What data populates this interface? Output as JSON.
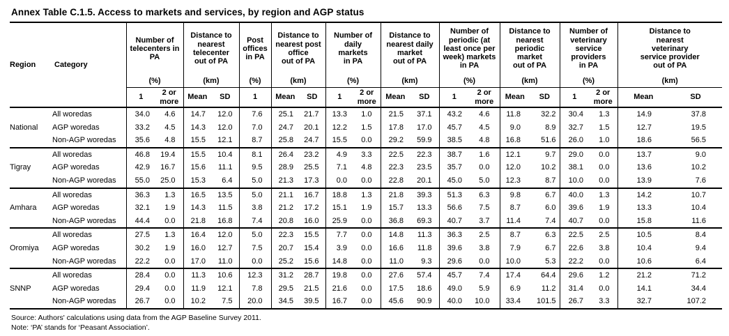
{
  "page": {
    "title": "Annex Table C.1.5. Access to markets and services, by region and AGP status",
    "source": "Source: Authors' calculations using data from the AGP Baseline Survey 2011.",
    "note": "Note: ‘PA’ stands for ‘Peasant Association’."
  },
  "table": {
    "corner": {
      "region": "Region",
      "category": "Category"
    },
    "column_groups": [
      {
        "label": "Number of\ntelecenters in\nPA",
        "unit": "(%)",
        "subs": [
          "1",
          "2 or\nmore"
        ]
      },
      {
        "label": "Distance to\nnearest\ntelecenter\nout of PA",
        "unit": "(km)",
        "subs": [
          "Mean",
          "SD"
        ]
      },
      {
        "label": "Post\noffices\nin PA",
        "unit": "(%)",
        "subs": [
          "1"
        ]
      },
      {
        "label": "Distance to\nnearest post\noffice\nout of PA",
        "unit": "(km)",
        "subs": [
          "Mean",
          "SD"
        ]
      },
      {
        "label": "Number of\ndaily\nmarkets\nin PA",
        "unit": "(%)",
        "subs": [
          "1",
          "2 or\nmore"
        ]
      },
      {
        "label": "Distance to\nnearest daily\nmarket\nout of PA",
        "unit": "(km)",
        "subs": [
          "Mean",
          "SD"
        ]
      },
      {
        "label": "Number of\nperiodic (at\nleast once per\nweek) markets\nin PA",
        "unit": "(%)",
        "subs": [
          "1",
          "2 or\nmore"
        ]
      },
      {
        "label": "Distance to\nnearest\nperiodic\nmarket\nout of PA",
        "unit": "(km)",
        "subs": [
          "Mean",
          "SD"
        ]
      },
      {
        "label": "Number of\nveterinary\nservice\nproviders\nin PA",
        "unit": "(%)",
        "subs": [
          "1",
          "2 or\nmore"
        ]
      },
      {
        "label": "Distance to\nnearest\nveterinary\nservice provider\nout of PA",
        "unit": "(km)",
        "subs": [
          "Mean",
          "SD"
        ]
      }
    ],
    "row_groups": [
      {
        "region": "National",
        "rows": [
          {
            "category": "All woredas",
            "values": [
              "34.0",
              "4.6",
              "14.7",
              "12.0",
              "7.6",
              "25.1",
              "21.7",
              "13.3",
              "1.0",
              "21.5",
              "37.1",
              "43.2",
              "4.6",
              "11.8",
              "32.2",
              "30.4",
              "1.3",
              "14.9",
              "37.8"
            ]
          },
          {
            "category": "AGP woredas",
            "values": [
              "33.2",
              "4.5",
              "14.3",
              "12.0",
              "7.0",
              "24.7",
              "20.1",
              "12.2",
              "1.5",
              "17.8",
              "17.0",
              "45.7",
              "4.5",
              "9.0",
              "8.9",
              "32.7",
              "1.5",
              "12.7",
              "19.5"
            ]
          },
          {
            "category": "Non-AGP woredas",
            "values": [
              "35.6",
              "4.8",
              "15.5",
              "12.1",
              "8.7",
              "25.8",
              "24.7",
              "15.5",
              "0.0",
              "29.2",
              "59.9",
              "38.5",
              "4.8",
              "16.8",
              "51.6",
              "26.0",
              "1.0",
              "18.6",
              "56.5"
            ]
          }
        ]
      },
      {
        "region": "Tigray",
        "rows": [
          {
            "category": "All woredas",
            "values": [
              "46.8",
              "19.4",
              "15.5",
              "10.4",
              "8.1",
              "26.4",
              "23.2",
              "4.9",
              "3.3",
              "22.5",
              "22.3",
              "38.7",
              "1.6",
              "12.1",
              "9.7",
              "29.0",
              "0.0",
              "13.7",
              "9.0"
            ]
          },
          {
            "category": "AGP woredas",
            "values": [
              "42.9",
              "16.7",
              "15.6",
              "11.1",
              "9.5",
              "28.9",
              "25.5",
              "7.1",
              "4.8",
              "22.3",
              "23.5",
              "35.7",
              "0.0",
              "12.0",
              "10.2",
              "38.1",
              "0.0",
              "13.6",
              "10.2"
            ]
          },
          {
            "category": "Non-AGP woredas",
            "values": [
              "55.0",
              "25.0",
              "15.3",
              "6.4",
              "5.0",
              "21.3",
              "17.3",
              "0.0",
              "0.0",
              "22.8",
              "20.1",
              "45.0",
              "5.0",
              "12.3",
              "8.7",
              "10.0",
              "0.0",
              "13.9",
              "7.6"
            ]
          }
        ]
      },
      {
        "region": "Amhara",
        "rows": [
          {
            "category": "All woredas",
            "values": [
              "36.3",
              "1.3",
              "16.5",
              "13.5",
              "5.0",
              "21.1",
              "16.7",
              "18.8",
              "1.3",
              "21.8",
              "39.3",
              "51.3",
              "6.3",
              "9.8",
              "6.7",
              "40.0",
              "1.3",
              "14.2",
              "10.7"
            ]
          },
          {
            "category": "AGP woredas",
            "values": [
              "32.1",
              "1.9",
              "14.3",
              "11.5",
              "3.8",
              "21.2",
              "17.2",
              "15.1",
              "1.9",
              "15.7",
              "13.3",
              "56.6",
              "7.5",
              "8.7",
              "6.0",
              "39.6",
              "1.9",
              "13.3",
              "10.4"
            ]
          },
          {
            "category": "Non-AGP woredas",
            "values": [
              "44.4",
              "0.0",
              "21.8",
              "16.8",
              "7.4",
              "20.8",
              "16.0",
              "25.9",
              "0.0",
              "36.8",
              "69.3",
              "40.7",
              "3.7",
              "11.4",
              "7.4",
              "40.7",
              "0.0",
              "15.8",
              "11.6"
            ]
          }
        ]
      },
      {
        "region": "Oromiya",
        "rows": [
          {
            "category": "All woredas",
            "values": [
              "27.5",
              "1.3",
              "16.4",
              "12.0",
              "5.0",
              "22.3",
              "15.5",
              "7.7",
              "0.0",
              "14.8",
              "11.3",
              "36.3",
              "2.5",
              "8.7",
              "6.3",
              "22.5",
              "2.5",
              "10.5",
              "8.4"
            ]
          },
          {
            "category": "AGP woredas",
            "values": [
              "30.2",
              "1.9",
              "16.0",
              "12.7",
              "7.5",
              "20.7",
              "15.4",
              "3.9",
              "0.0",
              "16.6",
              "11.8",
              "39.6",
              "3.8",
              "7.9",
              "6.7",
              "22.6",
              "3.8",
              "10.4",
              "9.4"
            ]
          },
          {
            "category": "Non-AGP woredas",
            "values": [
              "22.2",
              "0.0",
              "17.0",
              "11.0",
              "0.0",
              "25.2",
              "15.6",
              "14.8",
              "0.0",
              "11.0",
              "9.3",
              "29.6",
              "0.0",
              "10.0",
              "5.3",
              "22.2",
              "0.0",
              "10.6",
              "6.4"
            ]
          }
        ]
      },
      {
        "region": "SNNP",
        "rows": [
          {
            "category": "All woredas",
            "values": [
              "28.4",
              "0.0",
              "11.3",
              "10.6",
              "12.3",
              "31.2",
              "28.7",
              "19.8",
              "0.0",
              "27.6",
              "57.4",
              "45.7",
              "7.4",
              "17.4",
              "64.4",
              "29.6",
              "1.2",
              "21.2",
              "71.2"
            ]
          },
          {
            "category": "AGP woredas",
            "values": [
              "29.4",
              "0.0",
              "11.9",
              "12.1",
              "7.8",
              "29.5",
              "21.5",
              "21.6",
              "0.0",
              "17.5",
              "18.6",
              "49.0",
              "5.9",
              "6.9",
              "11.2",
              "31.4",
              "0.0",
              "14.1",
              "34.4"
            ]
          },
          {
            "category": "Non-AGP woredas",
            "values": [
              "26.7",
              "0.0",
              "10.2",
              "7.5",
              "20.0",
              "34.5",
              "39.5",
              "16.7",
              "0.0",
              "45.6",
              "90.9",
              "40.0",
              "10.0",
              "33.4",
              "101.5",
              "26.7",
              "3.3",
              "32.7",
              "107.2"
            ]
          }
        ]
      }
    ]
  }
}
